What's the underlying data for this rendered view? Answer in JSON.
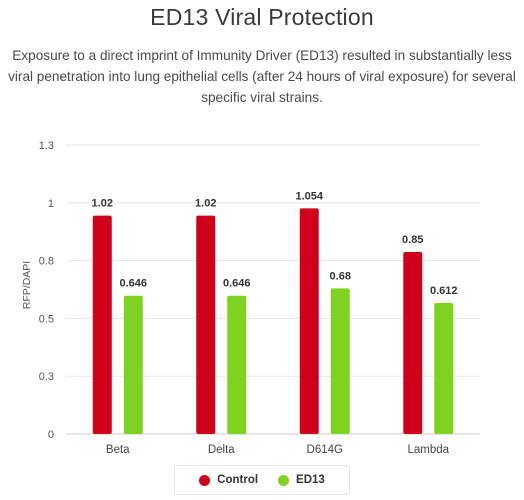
{
  "header": {
    "title": "ED13 Viral Protection",
    "subtitle": "Exposure to a direct imprint of Immunity Driver (ED13) resulted in substantially less viral penetration into lung epithelial cells (after 24 hours of viral exposure) for several specific viral strains."
  },
  "chart_data": {
    "type": "bar",
    "title": "ED13 Viral Protection",
    "xlabel": "",
    "ylabel": "RFP/DAPI",
    "categories": [
      "Beta",
      "Delta",
      "D614G",
      "Lambda"
    ],
    "series": [
      {
        "name": "Control",
        "color": "#d0021b",
        "values": [
          1.02,
          1.02,
          1.054,
          0.85
        ],
        "labels": [
          "1.02",
          "1.02",
          "1.054",
          "0.85"
        ]
      },
      {
        "name": "ED13",
        "color": "#7ed321",
        "values": [
          0.646,
          0.646,
          0.68,
          0.612
        ],
        "labels": [
          "0.646",
          "0.646",
          "0.68",
          "0.612"
        ]
      }
    ],
    "yticks": [
      0,
      0.27,
      0.54,
      0.81,
      1.08,
      1.35
    ],
    "ytick_labels": [
      "0",
      "0.3",
      "0.5",
      "0.8",
      "1",
      "1.3"
    ],
    "ylim": [
      0,
      1.35
    ],
    "grid": true,
    "legend_position": "bottom-center"
  }
}
